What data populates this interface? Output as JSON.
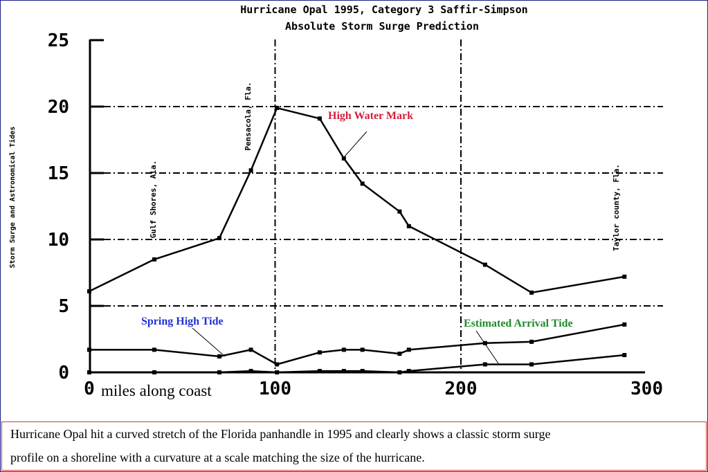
{
  "chart_data": {
    "type": "line",
    "title": "Hurricane Opal 1995, Category 3  Saffir-Simpson",
    "subtitle": "Absolute Storm Surge Prediction",
    "xlabel": "miles along coast",
    "ylabel": "Storm Surge and Astronomical Tides",
    "xlim": [
      0,
      300
    ],
    "ylim": [
      0,
      25
    ],
    "x_ticks": [
      "0",
      "100",
      "200",
      "300"
    ],
    "y_ticks": [
      "0",
      "5",
      "10",
      "15",
      "20",
      "25"
    ],
    "grid": "dash-dot lines at y = 5, 10, 15, 20 and x = 100, 200",
    "series": [
      {
        "name": "High Water Mark",
        "x": [
          0,
          35,
          70,
          87,
          101,
          124,
          137,
          147,
          167,
          172,
          213,
          238,
          288
        ],
        "y": [
          6.1,
          8.5,
          10.1,
          15.2,
          19.9,
          19.1,
          16.1,
          14.2,
          12.1,
          11.0,
          8.1,
          6.0,
          7.2
        ]
      },
      {
        "name": "Spring High Tide",
        "x": [
          0,
          35,
          70,
          87,
          101,
          124,
          137,
          147,
          167,
          172,
          213,
          238,
          288
        ],
        "y": [
          1.7,
          1.7,
          1.2,
          1.7,
          0.6,
          1.5,
          1.7,
          1.7,
          1.4,
          1.7,
          2.2,
          2.3,
          3.6
        ]
      },
      {
        "name": "Estimated Arrival Tide",
        "x": [
          0,
          35,
          70,
          87,
          101,
          124,
          137,
          147,
          167,
          172,
          213,
          238,
          288
        ],
        "y": [
          0.0,
          0.0,
          0.0,
          0.1,
          0.0,
          0.1,
          0.1,
          0.1,
          0.0,
          0.1,
          0.6,
          0.6,
          1.3
        ]
      }
    ],
    "annotations": [
      {
        "text": "Gulf Shores, Ala.",
        "x": 35
      },
      {
        "text": "Pensacola, Fla.",
        "x": 88
      },
      {
        "text": "Taylor county, Fla.",
        "x": 288
      },
      {
        "text": "High Water Mark",
        "color": "#d21f3c"
      },
      {
        "text": "Spring High Tide",
        "color": "#1f2fd6"
      },
      {
        "text": "Estimated Arrival Tide",
        "color": "#1f8a2a"
      }
    ]
  },
  "caption": {
    "line1": "Hurricane Opal hit a curved stretch of the Florida panhandle in 1995 and clearly shows a classic storm surge",
    "line2": " profile on a shoreline with a curvature at a scale matching the size of the hurricane."
  }
}
